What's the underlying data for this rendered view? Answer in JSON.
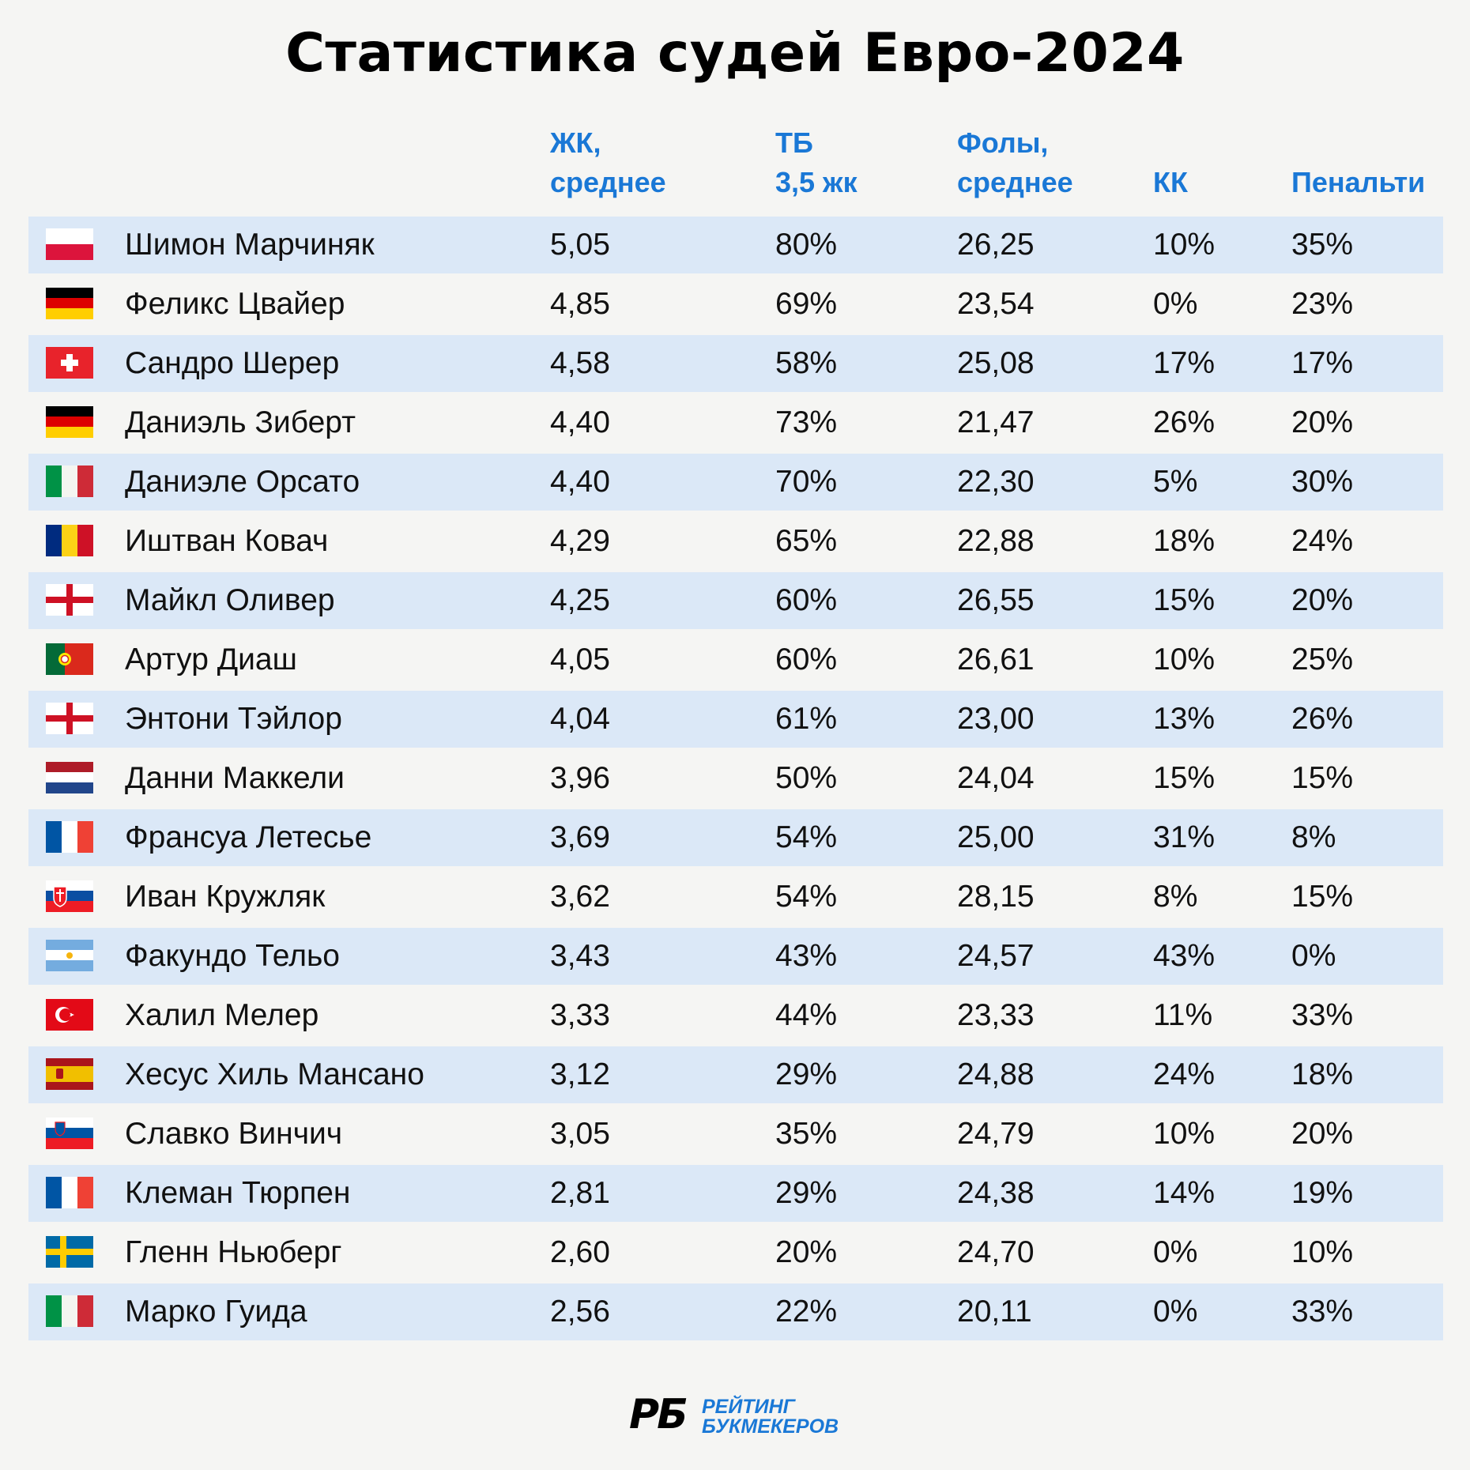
{
  "title": "Статистика судей Евро-2024",
  "columns": [
    {
      "line1": "ЖК,",
      "line2": "среднее"
    },
    {
      "line1": "ТБ",
      "line2": "3,5 жк"
    },
    {
      "line1": "Фолы,",
      "line2": "среднее"
    },
    {
      "line1": "",
      "line2": "КК"
    },
    {
      "line1": "",
      "line2": "Пенальти"
    }
  ],
  "colors": {
    "accent": "#1a78d6",
    "row_shade": "#dbe8f7",
    "background": "#f5f5f3"
  },
  "chart_data": {
    "type": "table",
    "title": "Статистика судей Евро-2024",
    "headers": [
      "ЖК, среднее",
      "ТБ 3,5 жк",
      "Фолы, среднее",
      "КК",
      "Пенальти"
    ],
    "rows": [
      {
        "flag": "poland-flag",
        "name": "Шимон Марчиняк",
        "values": [
          "5,05",
          "80%",
          "26,25",
          "10%",
          "35%"
        ]
      },
      {
        "flag": "germany-flag",
        "name": "Феликс Цвайер",
        "values": [
          "4,85",
          "69%",
          "23,54",
          "0%",
          "23%"
        ]
      },
      {
        "flag": "switzerland-flag",
        "name": "Сандро Шерер",
        "values": [
          "4,58",
          "58%",
          "25,08",
          "17%",
          "17%"
        ]
      },
      {
        "flag": "germany-flag",
        "name": "Даниэль Зиберт",
        "values": [
          "4,40",
          "73%",
          "21,47",
          "26%",
          "20%"
        ]
      },
      {
        "flag": "italy-flag",
        "name": "Даниэле Орсато",
        "values": [
          "4,40",
          "70%",
          "22,30",
          "5%",
          "30%"
        ]
      },
      {
        "flag": "romania-flag",
        "name": "Иштван Ковач",
        "values": [
          "4,29",
          "65%",
          "22,88",
          "18%",
          "24%"
        ]
      },
      {
        "flag": "england-flag",
        "name": "Майкл Оливер",
        "values": [
          "4,25",
          "60%",
          "26,55",
          "15%",
          "20%"
        ]
      },
      {
        "flag": "portugal-flag",
        "name": "Артур Диаш",
        "values": [
          "4,05",
          "60%",
          "26,61",
          "10%",
          "25%"
        ]
      },
      {
        "flag": "england-flag",
        "name": "Энтони Тэйлор",
        "values": [
          "4,04",
          "61%",
          "23,00",
          "13%",
          "26%"
        ]
      },
      {
        "flag": "netherlands-flag",
        "name": "Данни Маккели",
        "values": [
          "3,96",
          "50%",
          "24,04",
          "15%",
          "15%"
        ]
      },
      {
        "flag": "france-flag",
        "name": "Франсуа Летесье",
        "values": [
          "3,69",
          "54%",
          "25,00",
          "31%",
          "8%"
        ]
      },
      {
        "flag": "slovakia-flag",
        "name": "Иван Кружляк",
        "values": [
          "3,62",
          "54%",
          "28,15",
          "8%",
          "15%"
        ]
      },
      {
        "flag": "argentina-flag",
        "name": "Факундо Тельо",
        "values": [
          "3,43",
          "43%",
          "24,57",
          "43%",
          "0%"
        ]
      },
      {
        "flag": "turkey-flag",
        "name": "Халил Мелер",
        "values": [
          "3,33",
          "44%",
          "23,33",
          "11%",
          "33%"
        ]
      },
      {
        "flag": "spain-flag",
        "name": "Хесус Хиль Мансано",
        "values": [
          "3,12",
          "29%",
          "24,88",
          "24%",
          "18%"
        ]
      },
      {
        "flag": "slovenia-flag",
        "name": "Славко Винчич",
        "values": [
          "3,05",
          "35%",
          "24,79",
          "10%",
          "20%"
        ]
      },
      {
        "flag": "france-flag",
        "name": "Клеман Тюрпен",
        "values": [
          "2,81",
          "29%",
          "24,38",
          "14%",
          "19%"
        ]
      },
      {
        "flag": "sweden-flag",
        "name": "Гленн Ньюберг",
        "values": [
          "2,60",
          "20%",
          "24,70",
          "0%",
          "10%"
        ]
      },
      {
        "flag": "italy-flag",
        "name": "Марко Гуида",
        "values": [
          "2,56",
          "22%",
          "20,11",
          "0%",
          "33%"
        ]
      }
    ]
  },
  "logo": {
    "mark": "РБ",
    "line1": "РЕЙТИНГ",
    "line2": "БУКМЕКЕРОВ"
  }
}
